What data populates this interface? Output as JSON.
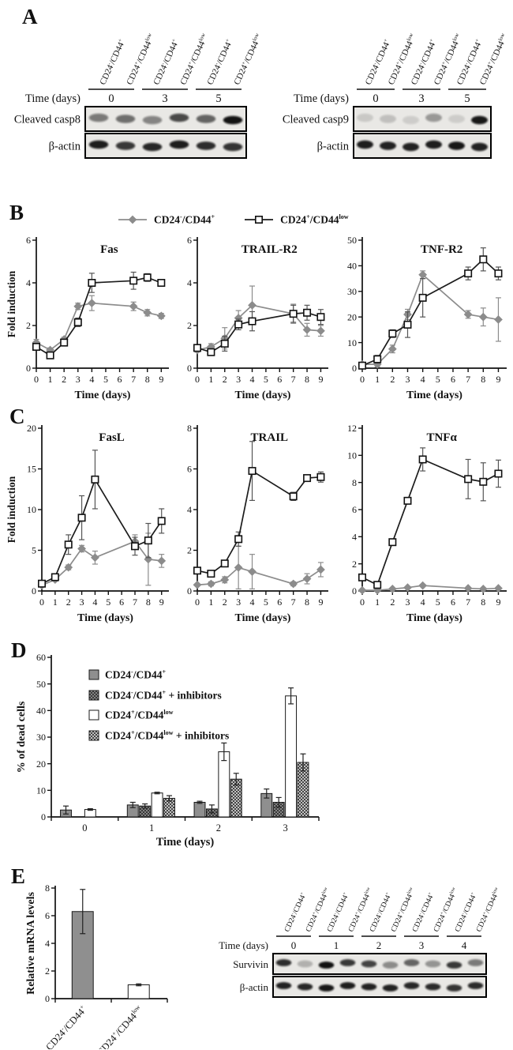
{
  "panels": {
    "A": {
      "label": "A"
    },
    "B": {
      "label": "B",
      "legend": [
        {
          "name": "CD24^{-}/CD44^{+}",
          "marker": "diamond",
          "color": "#8c8c8c"
        },
        {
          "name": "CD24^{+}/CD44^{low}",
          "marker": "square",
          "color": "#1c1c1c"
        }
      ]
    },
    "C": {
      "label": "C"
    },
    "D": {
      "label": "D",
      "legend": [
        {
          "name": "CD24^{-}/CD44^{+}",
          "fill": "solid-gray"
        },
        {
          "name": "CD24^{-}/CD44^{+} + inhibitors",
          "fill": "hatch-gray"
        },
        {
          "name": "CD24^{+}/CD44^{low}",
          "fill": "white"
        },
        {
          "name": "CD24^{+}/CD44^{low} + inhibitors",
          "fill": "hatch-light"
        }
      ]
    },
    "E": {
      "label": "E"
    }
  },
  "blots": [
    {
      "id": "blot-casp8",
      "time_label": "Time (days)",
      "groups": [
        "0",
        "3",
        "5"
      ],
      "lane_labels": [
        "CD24^{-}/CD44^{+}",
        "CD24^{+}/CD44^{low}",
        "CD24^{-}/CD44^{+}",
        "CD24^{+}/CD44^{low}",
        "CD24^{-}/CD44^{+}",
        "CD24^{+}/CD44^{low}"
      ],
      "rows": [
        {
          "label": "Cleaved casp8",
          "bands": [
            0.5,
            0.55,
            0.45,
            0.72,
            0.6,
            0.97
          ]
        },
        {
          "label": "β-actin",
          "bands": [
            0.92,
            0.8,
            0.88,
            0.92,
            0.85,
            0.82
          ]
        }
      ]
    },
    {
      "id": "blot-casp9",
      "time_label": "Time (days)",
      "groups": [
        "0",
        "3",
        "5"
      ],
      "lane_labels": [
        "CD24^{-}/CD44^{+}",
        "CD24^{+}/CD44^{low}",
        "CD24^{-}/CD44^{+}",
        "CD24^{+}/CD44^{low}",
        "CD24^{-}/CD44^{+}",
        "CD24^{+}/CD44^{low}"
      ],
      "rows": [
        {
          "label": "Cleaved casp9",
          "bands": [
            0.14,
            0.18,
            0.12,
            0.36,
            0.12,
            0.95
          ]
        },
        {
          "label": "β-actin",
          "bands": [
            0.92,
            0.9,
            0.9,
            0.92,
            0.95,
            0.9
          ]
        }
      ]
    },
    {
      "id": "blot-survivin",
      "time_label": "Time (days)",
      "groups": [
        "0",
        "1",
        "2",
        "3",
        "4"
      ],
      "lane_labels": [
        "CD24^{-}/CD44^{+}",
        "CD24^{+}/CD44^{low}",
        "CD24^{-}/CD44^{+}",
        "CD24^{+}/CD44^{low}",
        "CD24^{-}/CD44^{+}",
        "CD24^{+}/CD44^{low}",
        "CD24^{-}/CD44^{+}",
        "CD24^{+}/CD44^{low}",
        "CD24^{-}/CD44^{+}",
        "CD24^{+}/CD44^{low}"
      ],
      "rows": [
        {
          "label": "Survivin",
          "bands": [
            0.85,
            0.25,
            0.98,
            0.8,
            0.75,
            0.42,
            0.6,
            0.38,
            0.8,
            0.5
          ]
        },
        {
          "label": "β-actin",
          "bands": [
            0.9,
            0.88,
            0.95,
            0.92,
            0.9,
            0.9,
            0.88,
            0.86,
            0.82,
            0.86
          ]
        }
      ]
    }
  ],
  "chart_data": [
    {
      "id": "fas",
      "panel": "B",
      "type": "line",
      "title": "Fas",
      "xlabel": "Time (days)",
      "ylabel": "Fold induction",
      "xlim": [
        0,
        9
      ],
      "ylim": [
        0,
        6
      ],
      "ytick": 2,
      "x": [
        0,
        1,
        2,
        3,
        4,
        7,
        8,
        9
      ],
      "series": [
        {
          "name": "CD24^{-}/CD44^{+}",
          "marker": "diamond",
          "color": "#8c8c8c",
          "ecolor": "#8c8c8c",
          "values": [
            1.2,
            0.85,
            1.35,
            2.9,
            3.05,
            2.9,
            2.6,
            2.45
          ],
          "errors": [
            0.15,
            0.1,
            0.1,
            0.15,
            0.35,
            0.2,
            0.15,
            0.12
          ]
        },
        {
          "name": "CD24^{+}/CD44^{low}",
          "marker": "square",
          "color": "#1c1c1c",
          "ecolor": "#555555",
          "values": [
            1.0,
            0.6,
            1.2,
            2.15,
            4.0,
            4.1,
            4.25,
            4.0
          ],
          "errors": [
            0.12,
            0.1,
            0.15,
            0.2,
            0.45,
            0.4,
            0.18,
            0.1
          ]
        }
      ]
    },
    {
      "id": "trail-r2",
      "panel": "B",
      "type": "line",
      "title": "TRAIL-R2",
      "xlabel": "Time (days)",
      "ylabel": "",
      "xlim": [
        0,
        9
      ],
      "ylim": [
        0,
        6
      ],
      "ytick": 2,
      "x": [
        0,
        1,
        2,
        3,
        4,
        7,
        8,
        9
      ],
      "series": [
        {
          "name": "CD24^{-}/CD44^{+}",
          "marker": "diamond",
          "color": "#8c8c8c",
          "ecolor": "#8c8c8c",
          "values": [
            0.85,
            1.0,
            1.4,
            2.35,
            2.95,
            2.55,
            1.8,
            1.75
          ],
          "errors": [
            0.1,
            0.15,
            0.5,
            0.35,
            0.9,
            0.45,
            0.3,
            0.25
          ]
        },
        {
          "name": "CD24^{+}/CD44^{low}",
          "marker": "square",
          "color": "#1c1c1c",
          "ecolor": "#555555",
          "values": [
            0.95,
            0.75,
            1.15,
            2.05,
            2.2,
            2.55,
            2.6,
            2.4
          ],
          "errors": [
            0.1,
            0.1,
            0.35,
            0.25,
            0.45,
            0.4,
            0.35,
            0.35
          ]
        }
      ]
    },
    {
      "id": "tnf-r2",
      "panel": "B",
      "type": "line",
      "title": "TNF-R2",
      "xlabel": "Time (days)",
      "ylabel": "",
      "xlim": [
        0,
        9
      ],
      "ylim": [
        0,
        50
      ],
      "ytick": 10,
      "x": [
        0,
        1,
        2,
        3,
        4,
        7,
        8,
        9
      ],
      "series": [
        {
          "name": "CD24^{-}/CD44^{+}",
          "marker": "diamond",
          "color": "#8c8c8c",
          "ecolor": "#8c8c8c",
          "values": [
            1.5,
            1.5,
            7.5,
            21,
            36.5,
            21,
            20,
            19
          ],
          "errors": [
            0.5,
            1,
            1.5,
            2,
            1.5,
            1.5,
            3.5,
            8.5
          ]
        },
        {
          "name": "CD24^{+}/CD44^{low}",
          "marker": "square",
          "color": "#1c1c1c",
          "ecolor": "#555555",
          "values": [
            1,
            3.5,
            13.5,
            17,
            27.5,
            37,
            42.5,
            37
          ],
          "errors": [
            0.5,
            1.5,
            1.5,
            5,
            7.5,
            2.5,
            4.5,
            2.5
          ]
        }
      ]
    },
    {
      "id": "fasl",
      "panel": "C",
      "type": "line",
      "title": "FasL",
      "xlabel": "Time (days)",
      "ylabel": "Fold induction",
      "xlim": [
        0,
        9
      ],
      "ylim": [
        0,
        20
      ],
      "ytick": 5,
      "x": [
        0,
        1,
        2,
        3,
        4,
        7,
        8,
        9
      ],
      "series": [
        {
          "name": "CD24^{-}/CD44^{+}",
          "marker": "diamond",
          "color": "#8c8c8c",
          "ecolor": "#8c8c8c",
          "values": [
            0.7,
            1.4,
            2.9,
            5.2,
            4.1,
            6.1,
            3.9,
            3.7
          ],
          "errors": [
            0.2,
            0.2,
            0.3,
            0.4,
            0.8,
            0.8,
            3.2,
            0.8
          ]
        },
        {
          "name": "CD24^{+}/CD44^{low}",
          "marker": "square",
          "color": "#1c1c1c",
          "ecolor": "#555555",
          "values": [
            0.9,
            1.7,
            5.7,
            9.0,
            13.7,
            5.5,
            6.2,
            8.6
          ],
          "errors": [
            0.2,
            0.2,
            1.2,
            2.7,
            3.6,
            1.1,
            2.1,
            1.5
          ]
        }
      ]
    },
    {
      "id": "trail",
      "panel": "C",
      "type": "line",
      "title": "TRAIL",
      "xlabel": "Time (days)",
      "ylabel": "",
      "xlim": [
        0,
        9
      ],
      "ylim": [
        0,
        8
      ],
      "ytick": 2,
      "x": [
        0,
        1,
        2,
        3,
        4,
        7,
        8,
        9
      ],
      "series": [
        {
          "name": "CD24^{-}/CD44^{+}",
          "marker": "diamond",
          "color": "#8c8c8c",
          "ecolor": "#8c8c8c",
          "values": [
            0.3,
            0.35,
            0.55,
            1.15,
            0.95,
            0.35,
            0.6,
            1.05
          ],
          "errors": [
            0.05,
            0.1,
            0.15,
            1.05,
            0.85,
            0.1,
            0.25,
            0.35
          ]
        },
        {
          "name": "CD24^{+}/CD44^{low}",
          "marker": "square",
          "color": "#1c1c1c",
          "ecolor": "#555555",
          "values": [
            1.0,
            0.85,
            1.35,
            2.55,
            5.9,
            4.65,
            5.55,
            5.6
          ],
          "errors": [
            0.1,
            0.15,
            0.15,
            0.35,
            1.45,
            0.2,
            0.15,
            0.25
          ]
        }
      ]
    },
    {
      "id": "tnfa",
      "panel": "C",
      "type": "line",
      "title": "TNFα",
      "xlabel": "Time (days)",
      "ylabel": "",
      "xlim": [
        0,
        9
      ],
      "ylim": [
        0,
        12
      ],
      "ytick": 2,
      "x": [
        0,
        1,
        2,
        3,
        4,
        7,
        8,
        9
      ],
      "series": [
        {
          "name": "CD24^{-}/CD44^{+}",
          "marker": "diamond",
          "color": "#8c8c8c",
          "ecolor": "#8c8c8c",
          "values": [
            0.05,
            0.05,
            0.15,
            0.25,
            0.4,
            0.2,
            0.15,
            0.2
          ],
          "errors": [
            0.03,
            0.03,
            0.05,
            0.05,
            0.08,
            0.05,
            0.05,
            0.05
          ]
        },
        {
          "name": "CD24^{+}/CD44^{low}",
          "marker": "square",
          "color": "#1c1c1c",
          "ecolor": "#555555",
          "values": [
            1.0,
            0.45,
            3.6,
            6.65,
            9.7,
            8.25,
            8.05,
            8.65
          ],
          "errors": [
            0.15,
            0.15,
            0.2,
            0.2,
            0.85,
            1.45,
            1.4,
            1.0
          ]
        }
      ]
    },
    {
      "id": "dead-cells",
      "panel": "D",
      "type": "bar",
      "title": "",
      "xlabel": "Time (days)",
      "ylabel": "% of dead cells",
      "categories": [
        "0",
        "1",
        "2",
        "3"
      ],
      "ylim": [
        0,
        60
      ],
      "ytick": 10,
      "series": [
        {
          "name": "CD24^{-}/CD44^{+}",
          "fill": "solid-gray",
          "values": [
            2.6,
            4.5,
            5.5,
            8.8
          ],
          "errors": [
            1.5,
            1.0,
            0.4,
            1.7
          ]
        },
        {
          "name": "CD24^{-}/CD44^{+} + inhibitors",
          "fill": "hatch-gray",
          "values": [
            null,
            4.1,
            3.0,
            5.5
          ],
          "errors": [
            null,
            0.8,
            1.5,
            1.8
          ]
        },
        {
          "name": "CD24^{+}/CD44^{low}",
          "fill": "white",
          "values": [
            2.8,
            9.0,
            24.5,
            45.5
          ],
          "errors": [
            0.3,
            0.3,
            3.3,
            3.0
          ]
        },
        {
          "name": "CD24^{+}/CD44^{low} + inhibitors",
          "fill": "hatch-light",
          "values": [
            null,
            7.0,
            14.2,
            20.5
          ],
          "errors": [
            null,
            1.0,
            2.2,
            3.2
          ]
        }
      ],
      "legend_position": "inside-top-left"
    },
    {
      "id": "mrna",
      "panel": "E",
      "type": "bar",
      "title": "",
      "xlabel": "",
      "ylabel": "Relative mRNA levels",
      "categories": [
        "CD24^{-}/CD44^{+}",
        "CD24^{+}/CD44^{low}"
      ],
      "ylim": [
        0,
        8
      ],
      "ytick": 2,
      "rotate_xticklabels": 48,
      "series": [
        {
          "name": "",
          "fill": "per-category",
          "fills": [
            "solid-gray",
            "white"
          ],
          "values": [
            6.3,
            1.0
          ],
          "errors": [
            1.6,
            0.07
          ]
        }
      ]
    }
  ]
}
